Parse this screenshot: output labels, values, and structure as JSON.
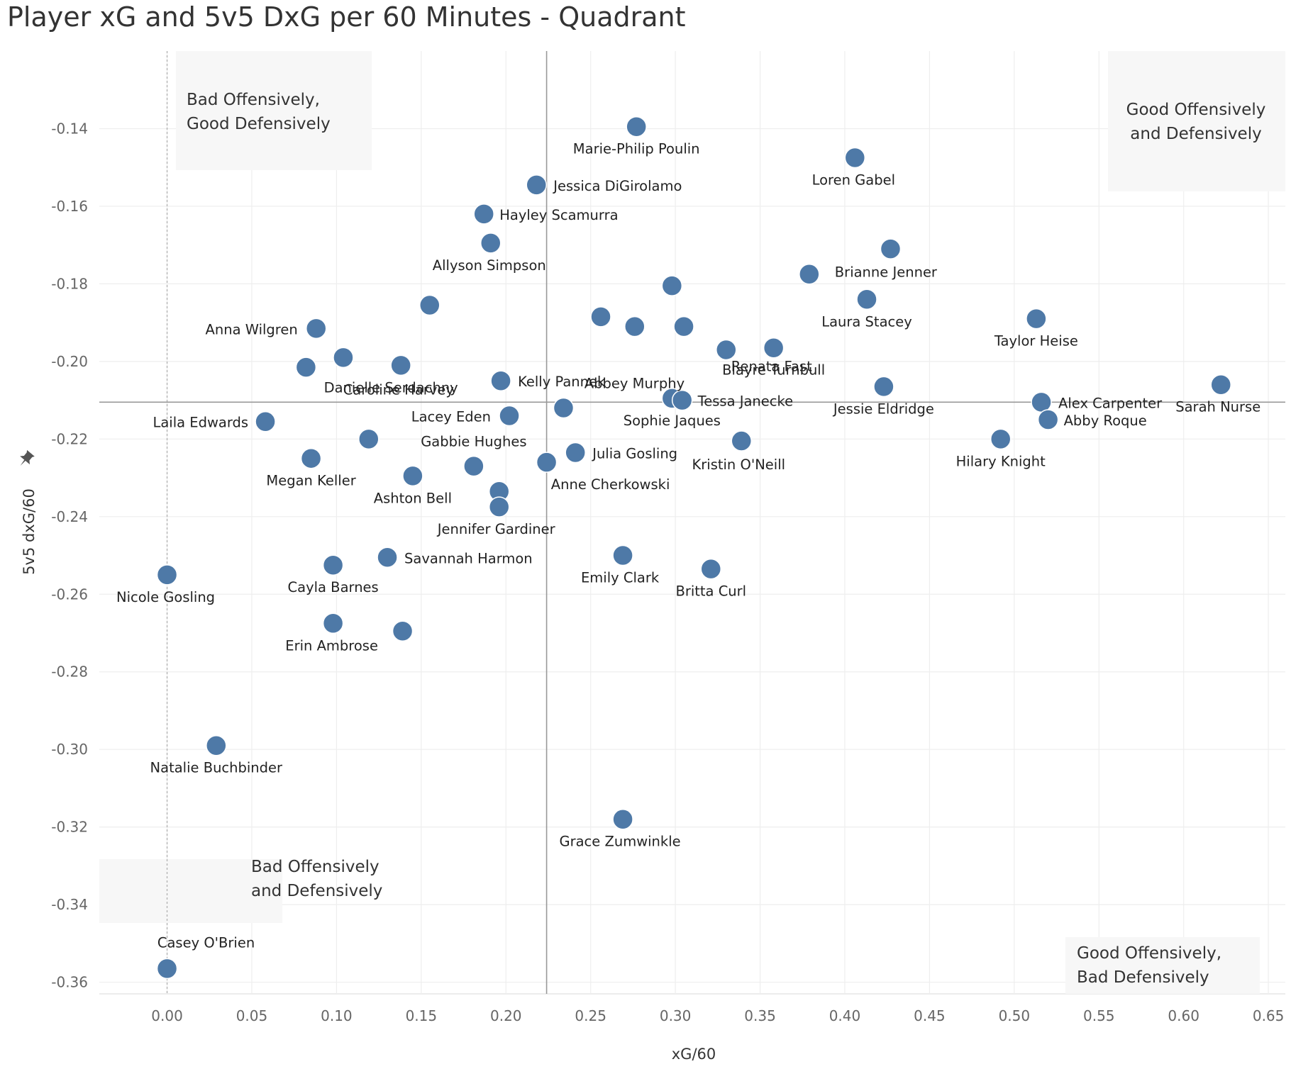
{
  "chart_data": {
    "type": "scatter",
    "title": "Player xG and 5v5 DxG per 60 Minutes - Quadrant",
    "xlabel": "xG/60",
    "ylabel": "5v5 dxG/60",
    "xlim": [
      -0.04,
      0.66
    ],
    "ylim": [
      -0.363,
      -0.12
    ],
    "x_ticks": [
      "0.00",
      "0.05",
      "0.10",
      "0.15",
      "0.20",
      "0.25",
      "0.30",
      "0.35",
      "0.40",
      "0.45",
      "0.50",
      "0.55",
      "0.60",
      "0.65"
    ],
    "y_ticks": [
      "-0.14",
      "-0.16",
      "-0.18",
      "-0.20",
      "-0.22",
      "-0.24",
      "-0.26",
      "-0.28",
      "-0.30",
      "-0.32",
      "-0.34",
      "-0.36"
    ],
    "x_ref_line": 0.224,
    "y_ref_line": -0.2105,
    "point_color": "#4e79a7",
    "grid": true,
    "quadrant_labels": [
      {
        "id": "top-left",
        "lines": [
          "Bad Offensively,",
          "Good Defensively"
        ]
      },
      {
        "id": "top-right",
        "lines": [
          "Good Offensively",
          "and Defensively"
        ]
      },
      {
        "id": "bottom-left",
        "lines": [
          "Bad Offensively",
          "and Defensively"
        ]
      },
      {
        "id": "bottom-right",
        "lines": [
          "Good Offensively,",
          "Bad Defensively"
        ]
      }
    ],
    "points": [
      {
        "x": 0.277,
        "y": -0.1395,
        "label": "Marie-Philip Poulin"
      },
      {
        "x": 0.406,
        "y": -0.1475,
        "label": "Loren Gabel"
      },
      {
        "x": 0.218,
        "y": -0.1545,
        "label": "Jessica DiGirolamo"
      },
      {
        "x": 0.187,
        "y": -0.162,
        "label": "Hayley Scamurra"
      },
      {
        "x": 0.191,
        "y": -0.1695,
        "label": "Allyson Simpson"
      },
      {
        "x": 0.427,
        "y": -0.171,
        "label": ""
      },
      {
        "x": 0.379,
        "y": -0.1775,
        "label": "Brianne Jenner"
      },
      {
        "x": 0.298,
        "y": -0.1805,
        "label": ""
      },
      {
        "x": 0.413,
        "y": -0.184,
        "label": "Laura Stacey"
      },
      {
        "x": 0.155,
        "y": -0.1855,
        "label": ""
      },
      {
        "x": 0.256,
        "y": -0.1885,
        "label": ""
      },
      {
        "x": 0.513,
        "y": -0.189,
        "label": "Taylor Heise"
      },
      {
        "x": 0.088,
        "y": -0.1915,
        "label": "Anna Wilgren"
      },
      {
        "x": 0.276,
        "y": -0.191,
        "label": ""
      },
      {
        "x": 0.305,
        "y": -0.191,
        "label": ""
      },
      {
        "x": 0.33,
        "y": -0.197,
        "label": "Renata Fast"
      },
      {
        "x": 0.358,
        "y": -0.1965,
        "label": "Blayre Turnbull"
      },
      {
        "x": 0.104,
        "y": -0.199,
        "label": ""
      },
      {
        "x": 0.082,
        "y": -0.2015,
        "label": ""
      },
      {
        "x": 0.138,
        "y": -0.201,
        "label": "Danielle Serdachny"
      },
      {
        "x": 0.197,
        "y": -0.205,
        "label": "Kelly Pannek"
      },
      {
        "x": 0.423,
        "y": -0.2065,
        "label": "Jessie Eldridge"
      },
      {
        "x": 0.622,
        "y": -0.206,
        "label": "Sarah Nurse"
      },
      {
        "x": 0.298,
        "y": -0.2095,
        "label": "Sophie Jaques"
      },
      {
        "x": 0.304,
        "y": -0.21,
        "label": "Tessa Janecke"
      },
      {
        "x": 0.516,
        "y": -0.2105,
        "label": "Alex Carpenter"
      },
      {
        "x": 0.234,
        "y": -0.212,
        "label": "Abbey Murphy"
      },
      {
        "x": 0.202,
        "y": -0.214,
        "label": "Lacey Eden"
      },
      {
        "x": 0.52,
        "y": -0.215,
        "label": "Abby Roque"
      },
      {
        "x": 0.058,
        "y": -0.2155,
        "label": "Laila Edwards"
      },
      {
        "x": 0.119,
        "y": -0.22,
        "label": "Caroline Harvey"
      },
      {
        "x": 0.492,
        "y": -0.22,
        "label": "Hilary Knight"
      },
      {
        "x": 0.339,
        "y": -0.2205,
        "label": "Kristin O'Neill"
      },
      {
        "x": 0.241,
        "y": -0.2235,
        "label": "Julia Gosling"
      },
      {
        "x": 0.085,
        "y": -0.225,
        "label": "Megan Keller"
      },
      {
        "x": 0.224,
        "y": -0.226,
        "label": "Anne Cherkowski"
      },
      {
        "x": 0.181,
        "y": -0.227,
        "label": "Gabbie Hughes"
      },
      {
        "x": 0.145,
        "y": -0.2295,
        "label": "Ashton Bell"
      },
      {
        "x": 0.196,
        "y": -0.2335,
        "label": ""
      },
      {
        "x": 0.196,
        "y": -0.2375,
        "label": "Jennifer Gardiner"
      },
      {
        "x": 0.269,
        "y": -0.25,
        "label": "Emily Clark"
      },
      {
        "x": 0.13,
        "y": -0.2505,
        "label": "Savannah Harmon"
      },
      {
        "x": 0.098,
        "y": -0.2525,
        "label": "Cayla Barnes"
      },
      {
        "x": 0.321,
        "y": -0.2535,
        "label": "Britta Curl"
      },
      {
        "x": 0.0,
        "y": -0.255,
        "label": "Nicole Gosling"
      },
      {
        "x": 0.098,
        "y": -0.2675,
        "label": "Erin Ambrose"
      },
      {
        "x": 0.139,
        "y": -0.2695,
        "label": ""
      },
      {
        "x": 0.029,
        "y": -0.299,
        "label": "Natalie Buchbinder"
      },
      {
        "x": 0.269,
        "y": -0.318,
        "label": "Grace Zumwinkle"
      },
      {
        "x": 0.0,
        "y": -0.3565,
        "label": "Casey O'Brien"
      }
    ]
  }
}
